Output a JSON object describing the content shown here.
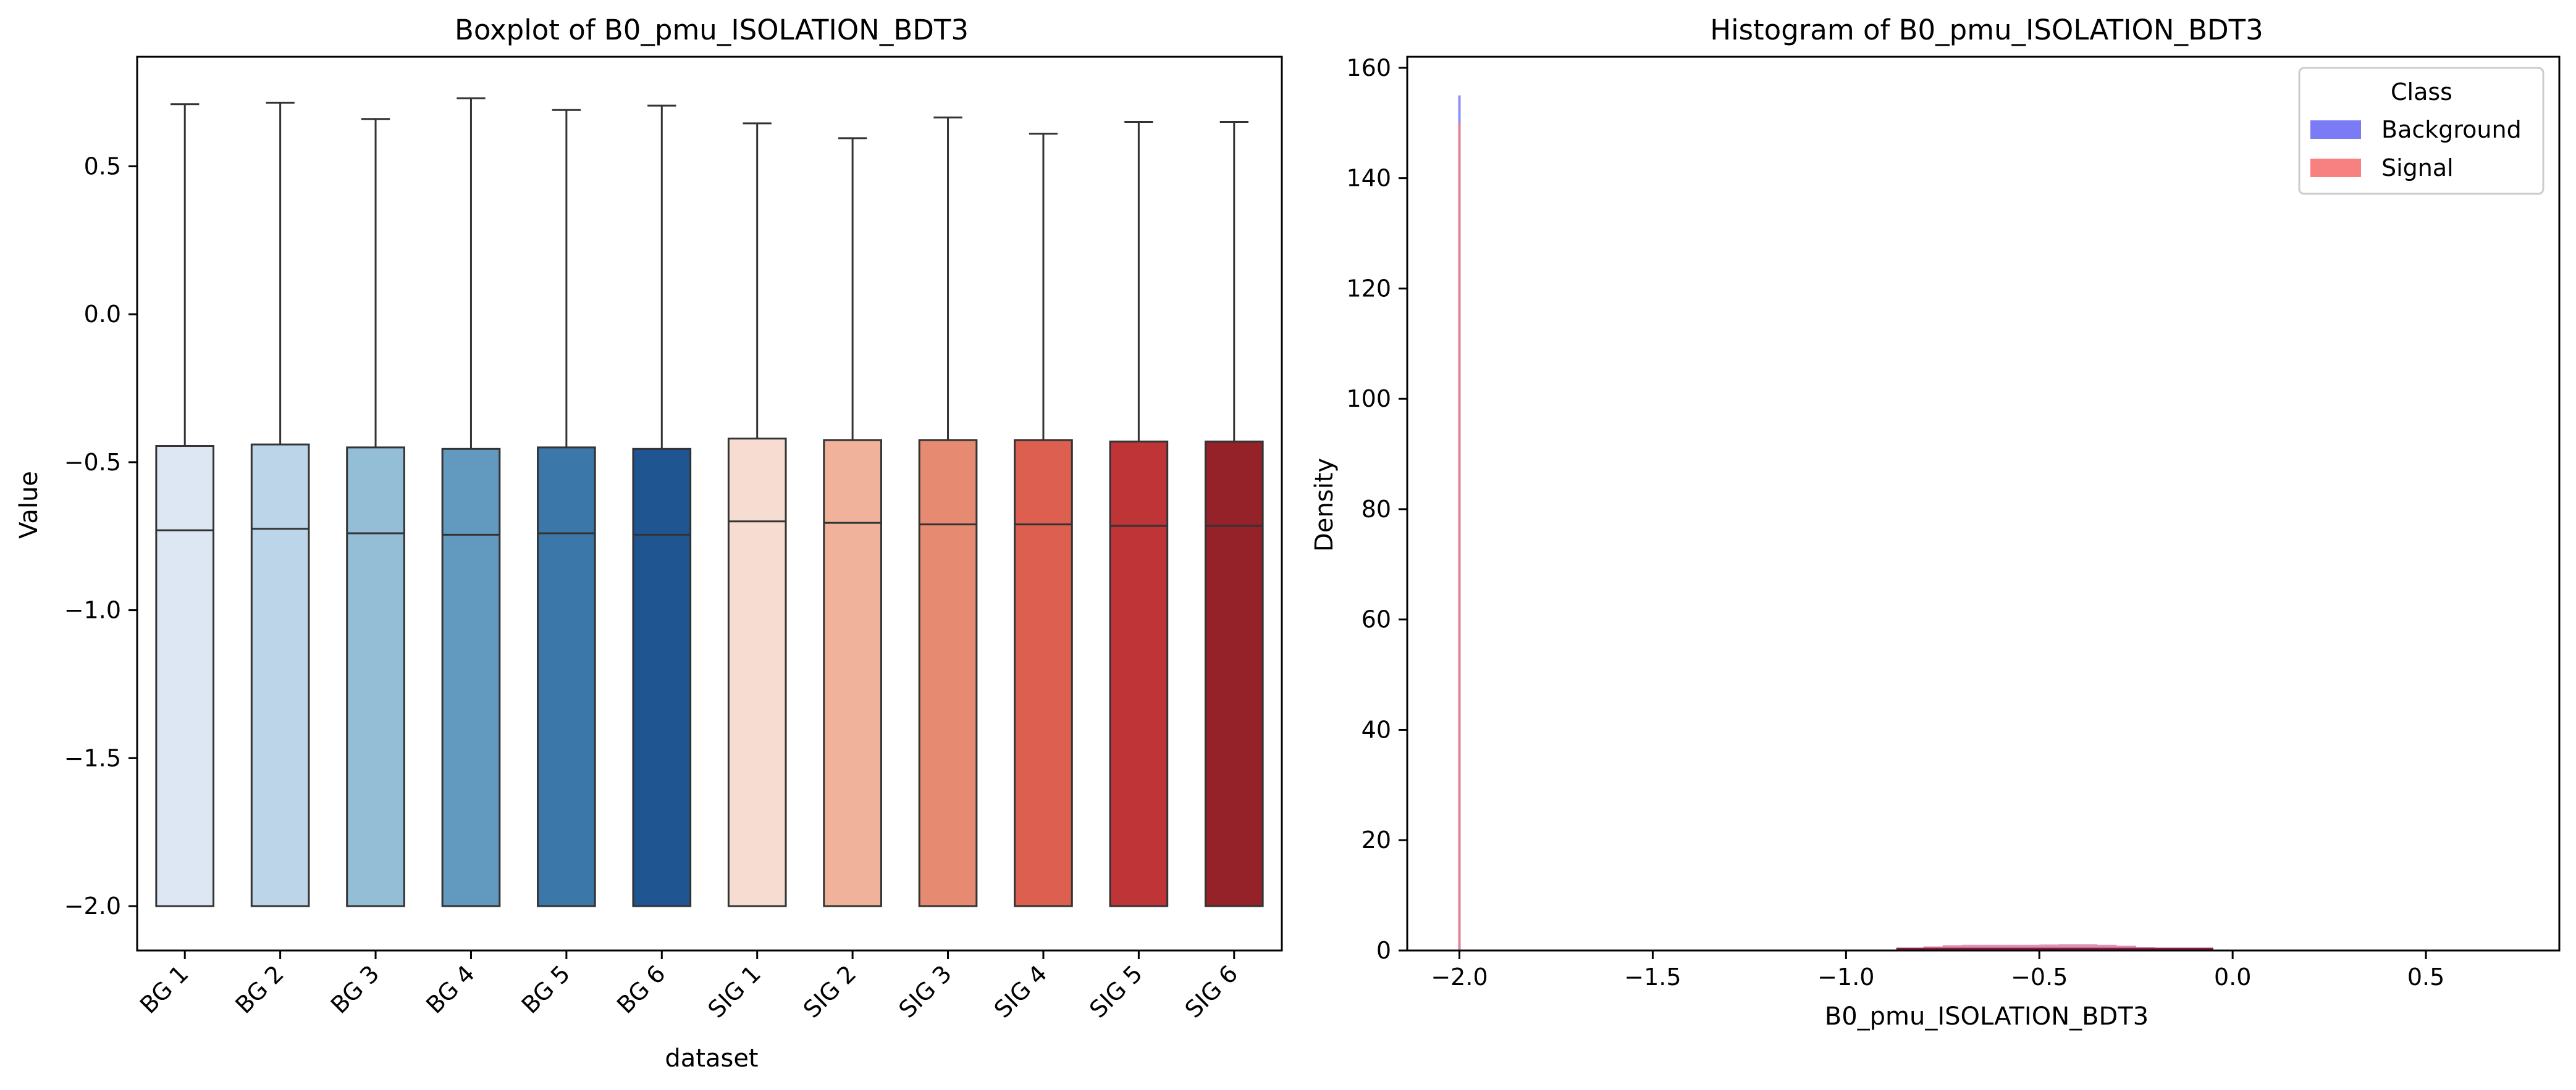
{
  "colors": {
    "background_hist": "#7b7bf5",
    "signal_hist": "#f78080",
    "box_edge": "#333333"
  },
  "chart_data": [
    {
      "type": "box",
      "title": "Boxplot of B0_pmu_ISOLATION_BDT3",
      "xlabel": "dataset",
      "ylabel": "Value",
      "ylim": [
        -2.15,
        0.87
      ],
      "yticks": [
        -2.0,
        -1.5,
        -1.0,
        -0.5,
        0.0,
        0.5
      ],
      "ytick_labels": [
        "−2.0",
        "−1.5",
        "−1.0",
        "−0.5",
        "0.0",
        "0.5"
      ],
      "categories": [
        "BG 1",
        "BG 2",
        "BG 3",
        "BG 4",
        "BG 5",
        "BG 6",
        "SIG 1",
        "SIG 2",
        "SIG 3",
        "SIG 4",
        "SIG 5",
        "SIG 6"
      ],
      "boxes": [
        {
          "whislo": -2.0,
          "q1": -2.0,
          "med": -0.73,
          "q3": -0.445,
          "whishi": 0.71,
          "color": "#dce7f3"
        },
        {
          "whislo": -2.0,
          "q1": -2.0,
          "med": -0.725,
          "q3": -0.44,
          "whishi": 0.715,
          "color": "#bdd5e8"
        },
        {
          "whislo": -2.0,
          "q1": -2.0,
          "med": -0.74,
          "q3": -0.45,
          "whishi": 0.66,
          "color": "#94bdd6"
        },
        {
          "whislo": -2.0,
          "q1": -2.0,
          "med": -0.745,
          "q3": -0.455,
          "whishi": 0.73,
          "color": "#629abf"
        },
        {
          "whislo": -2.0,
          "q1": -2.0,
          "med": -0.74,
          "q3": -0.45,
          "whishi": 0.69,
          "color": "#3b77a8"
        },
        {
          "whislo": -2.0,
          "q1": -2.0,
          "med": -0.745,
          "q3": -0.455,
          "whishi": 0.705,
          "color": "#1f5590"
        },
        {
          "whislo": -2.0,
          "q1": -2.0,
          "med": -0.7,
          "q3": -0.42,
          "whishi": 0.645,
          "color": "#f7ddd1"
        },
        {
          "whislo": -2.0,
          "q1": -2.0,
          "med": -0.705,
          "q3": -0.425,
          "whishi": 0.595,
          "color": "#f0b29b"
        },
        {
          "whislo": -2.0,
          "q1": -2.0,
          "med": -0.71,
          "q3": -0.425,
          "whishi": 0.665,
          "color": "#e68b72"
        },
        {
          "whislo": -2.0,
          "q1": -2.0,
          "med": -0.71,
          "q3": -0.425,
          "whishi": 0.61,
          "color": "#dc5f4f"
        },
        {
          "whislo": -2.0,
          "q1": -2.0,
          "med": -0.715,
          "q3": -0.43,
          "whishi": 0.65,
          "color": "#bf3537"
        },
        {
          "whislo": -2.0,
          "q1": -2.0,
          "med": -0.715,
          "q3": -0.43,
          "whishi": 0.65,
          "color": "#952229"
        }
      ]
    },
    {
      "type": "histogram",
      "title": "Histogram of B0_pmu_ISOLATION_BDT3",
      "xlabel": "B0_pmu_ISOLATION_BDT3",
      "ylabel": "Density",
      "xlim": [
        -2.135,
        0.845
      ],
      "ylim": [
        0,
        162
      ],
      "xticks": [
        -2.0,
        -1.5,
        -1.0,
        -0.5,
        0.0,
        0.5
      ],
      "xtick_labels": [
        "−2.0",
        "−1.5",
        "−1.0",
        "−0.5",
        "0.0",
        "0.5"
      ],
      "yticks": [
        0,
        20,
        40,
        60,
        80,
        100,
        120,
        140,
        160
      ],
      "ytick_labels": [
        "0",
        "20",
        "40",
        "60",
        "80",
        "100",
        "120",
        "140",
        "160"
      ],
      "legend": {
        "title": "Class",
        "position": "top-right"
      },
      "series": [
        {
          "name": "Background",
          "color": "#7b7bf5",
          "spike": {
            "x": -2.0,
            "density": 155
          },
          "x": [
            -0.85,
            -0.8,
            -0.75,
            -0.7,
            -0.65,
            -0.6,
            -0.55,
            -0.5,
            -0.45,
            -0.4,
            -0.35,
            -0.3,
            -0.25,
            -0.2,
            -0.15,
            -0.1
          ],
          "density": [
            0.3,
            0.7,
            0.9,
            1.0,
            1.0,
            1.0,
            1.0,
            1.05,
            1.1,
            1.1,
            1.0,
            0.85,
            0.6,
            0.35,
            0.15,
            0.05
          ]
        },
        {
          "name": "Signal",
          "color": "#f78080",
          "spike": {
            "x": -2.0,
            "density": 150
          },
          "x": [
            -0.85,
            -0.8,
            -0.75,
            -0.7,
            -0.65,
            -0.6,
            -0.55,
            -0.5,
            -0.45,
            -0.4,
            -0.35,
            -0.3,
            -0.25,
            -0.2,
            -0.15,
            -0.1
          ],
          "density": [
            0.3,
            0.75,
            1.0,
            1.05,
            1.05,
            1.05,
            1.05,
            1.1,
            1.15,
            1.15,
            1.05,
            0.9,
            0.6,
            0.35,
            0.15,
            0.05
          ]
        }
      ]
    }
  ]
}
